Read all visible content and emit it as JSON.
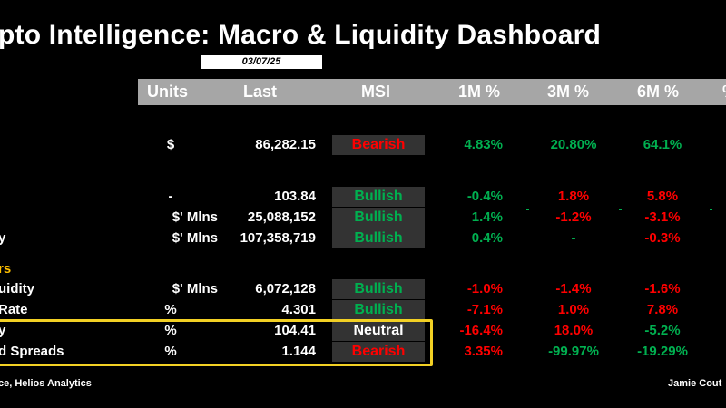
{
  "title": "pto Intelligence: Macro & Liquidity Dashboard",
  "date": "03/07/25",
  "headers": {
    "units": "Units",
    "last": "Last",
    "msi": "MSI",
    "m1": "1M %",
    "m3": "3M %",
    "m6": "6M %"
  },
  "rows": [
    {
      "label": "",
      "unit": "$",
      "last": "86,282.15",
      "msi": "Bearish",
      "m1": "4.83%",
      "m3": "20.80%",
      "m6": "64.1%"
    },
    {
      "label": "",
      "unit": "-",
      "last": "103.84",
      "msi": "Bullish",
      "m1": "-0.4%",
      "m3": "1.8%",
      "m6": "5.8%"
    },
    {
      "label": "",
      "unit": "$' Mlns",
      "last": "25,088,152",
      "msi": "Bullish",
      "m1": "1.4%",
      "m3": "-1.2%",
      "m6": "-3.1%"
    },
    {
      "label": "y",
      "unit": "$' Mlns",
      "last": "107,358,719",
      "msi": "Bullish",
      "m1": "0.4%",
      "m3": "-",
      "m6": "-0.3%"
    },
    {
      "label": "uidity",
      "unit": "$' Mlns",
      "last": "6,072,128",
      "msi": "Bullish",
      "m1": "-1.0%",
      "m3": "-1.4%",
      "m6": "-1.6%"
    },
    {
      "label": "Rate",
      "unit": "%",
      "last": "4.301",
      "msi": "Bullish",
      "m1": "-7.1%",
      "m3": "1.0%",
      "m6": "7.8%"
    },
    {
      "label": "y",
      "unit": "%",
      "last": "104.41",
      "msi": "Neutral",
      "m1": "-16.4%",
      "m3": "18.0%",
      "m6": "-5.2%"
    },
    {
      "label": "d Spreads",
      "unit": "%",
      "last": "1.144",
      "msi": "Bearish",
      "m1": "3.35%",
      "m3": "-99.97%",
      "m6": "-19.29%"
    }
  ],
  "section_label": "rs",
  "footer_left": "ce, Helios Analytics",
  "footer_right": "Jamie Cout",
  "colors": {
    "positive": "#00b050",
    "negative": "#ff0000",
    "section": "#ffc000",
    "highlight_border": "#f2d024",
    "header_bg": "#a6a6a6",
    "msi_bg": "#333333"
  }
}
